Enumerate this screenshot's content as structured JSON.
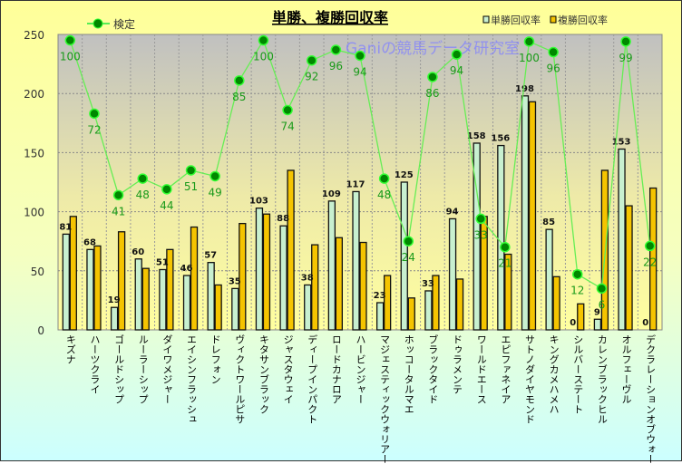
{
  "chart_data": {
    "type": "bar",
    "title": "単勝、複勝回収率",
    "watermark": "Ganiの競馬データ研究室",
    "ylim": [
      0,
      250
    ],
    "yticks": [
      0,
      50,
      100,
      150,
      200,
      250
    ],
    "grid": true,
    "legend": {
      "line": "検定",
      "bars": [
        "単勝回収率",
        "複勝回収率"
      ],
      "placement": "top"
    },
    "categories": [
      "キズナ",
      "ハーツクライ",
      "ゴールドシップ",
      "ルーラーシップ",
      "ダイワメジャー",
      "エイシンフラッシュ",
      "ドレフォン",
      "ヴィクトワールピサ",
      "キタサンブラック",
      "ジャスタウェイ",
      "ディープインパクト",
      "ロードカナロア",
      "ハービンジャー",
      "マジェスティックウォリアー",
      "ホッコータルマエ",
      "ブラックタイド",
      "ドゥラメンテ",
      "ワールドエース",
      "エピファネイア",
      "サトノダイヤモンド",
      "キングカメハメハ",
      "シルバーステート",
      "カレンブラックヒル",
      "オルフェーヴル",
      "デクラレーションオブウォー"
    ],
    "series": [
      {
        "name": "単勝回収率",
        "color": "#c8f0d0",
        "values": [
          81,
          68,
          19,
          60,
          51,
          46,
          57,
          35,
          103,
          88,
          38,
          109,
          117,
          23,
          125,
          33,
          94,
          158,
          156,
          198,
          85,
          0,
          9,
          153,
          0
        ]
      },
      {
        "name": "複勝回収率",
        "color": "#f5c400",
        "values": [
          96,
          71,
          83,
          52,
          68,
          87,
          38,
          90,
          98,
          135,
          72,
          78,
          74,
          46,
          27,
          46,
          43,
          96,
          64,
          193,
          45,
          22,
          135,
          105,
          120
        ]
      }
    ],
    "line": {
      "name": "検定",
      "color": "#00aa00",
      "labels": [
        100,
        72,
        41,
        48,
        44,
        51,
        49,
        85,
        100,
        74,
        92,
        96,
        94,
        48,
        24,
        86,
        94,
        33,
        21,
        100,
        96,
        12,
        6,
        99,
        22
      ],
      "plotted_values": [
        245,
        183,
        114,
        128,
        119,
        135,
        130,
        211,
        245,
        186,
        228,
        237,
        232,
        128,
        75,
        214,
        233,
        94,
        70,
        244,
        235,
        47,
        35,
        244,
        71
      ]
    }
  }
}
